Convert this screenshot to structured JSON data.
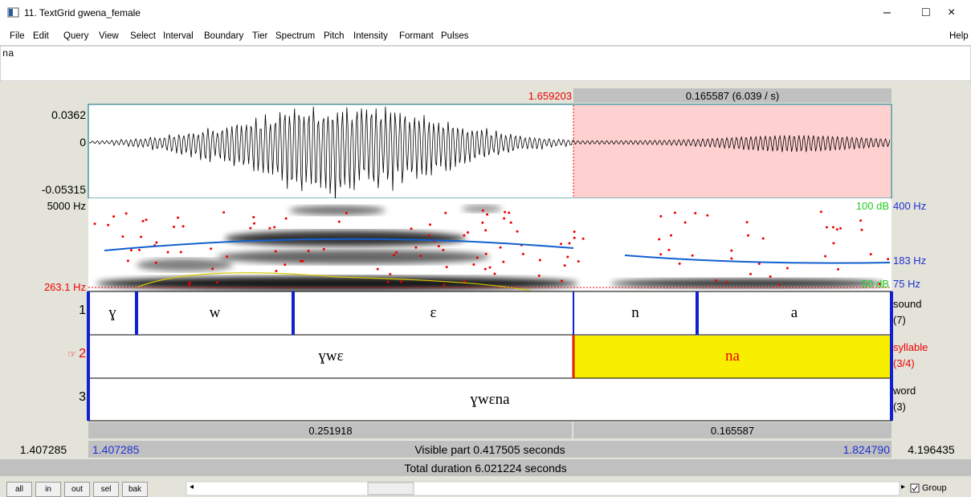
{
  "window": {
    "title": "11. TextGrid gwena_female",
    "controls": [
      "–",
      "□",
      "×"
    ]
  },
  "menu": {
    "items": [
      "File",
      "Edit",
      "Query",
      "View",
      "Select",
      "Interval",
      "Boundary",
      "Tier",
      "Spectrum",
      "Pitch",
      "Intensity",
      "Formant",
      "Pulses"
    ],
    "help": "Help"
  },
  "text_field": "na",
  "time_bar": {
    "cursor": "1.659203",
    "selection": "0.165587 (6.039 / s)"
  },
  "waveform": {
    "ticks": [
      "0.0362",
      "0",
      "-0.05315"
    ]
  },
  "spectrogram": {
    "left": [
      "5000 Hz",
      "263.1 Hz"
    ],
    "right_db": [
      "100 dB",
      "50 dB"
    ],
    "right_hz": [
      "400 Hz",
      "183 Hz",
      "75 Hz"
    ]
  },
  "tiers": [
    {
      "number": "1",
      "name": "sound",
      "count": "(7)",
      "intervals": [
        "ɣ",
        "w",
        "ɛ",
        "n",
        "a"
      ]
    },
    {
      "number": "2",
      "name": "syllable",
      "count": "(3/4)",
      "intervals": [
        "ɣwɛ",
        "na"
      ]
    },
    {
      "number": "3",
      "name": "word",
      "count": "(3)",
      "intervals": [
        "ɣwɛna"
      ]
    }
  ],
  "durations": [
    "0.251918",
    "0.165587"
  ],
  "visible": {
    "start_total": "1.407285",
    "start": "1.407285",
    "label": "Visible part 0.417505 seconds",
    "end": "1.824790",
    "end_total": "4.196435"
  },
  "total": "Total duration 6.021224 seconds",
  "buttons": [
    "all",
    "in",
    "out",
    "sel",
    "bak"
  ],
  "group": "Group"
}
